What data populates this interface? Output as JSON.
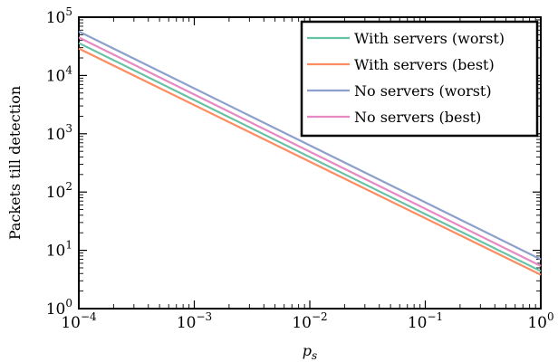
{
  "chart_data": {
    "type": "line",
    "xlabel_base": "p",
    "xlabel_sub": "s",
    "ylabel": "Packets till detection",
    "xscale": "log",
    "yscale": "log",
    "xlim": [
      0.0001,
      1
    ],
    "ylim": [
      1,
      100000
    ],
    "grid": false,
    "legend_position": "top-right",
    "x_ticks": [
      {
        "base": "10",
        "exp": "−4",
        "value": 0.0001
      },
      {
        "base": "10",
        "exp": "−3",
        "value": 0.001
      },
      {
        "base": "10",
        "exp": "−2",
        "value": 0.01
      },
      {
        "base": "10",
        "exp": "−1",
        "value": 0.1
      },
      {
        "base": "10",
        "exp": "0",
        "value": 1
      }
    ],
    "y_ticks": [
      {
        "base": "10",
        "exp": "0",
        "value": 1
      },
      {
        "base": "10",
        "exp": "1",
        "value": 10
      },
      {
        "base": "10",
        "exp": "2",
        "value": 100
      },
      {
        "base": "10",
        "exp": "3",
        "value": 1000
      },
      {
        "base": "10",
        "exp": "4",
        "value": 10000
      },
      {
        "base": "10",
        "exp": "5",
        "value": 100000
      }
    ],
    "series": [
      {
        "name": "With servers (worst)",
        "color": "#66c2a5",
        "x": [
          0.0001,
          1
        ],
        "y": [
          36000,
          4.4
        ]
      },
      {
        "name": "With servers (best)",
        "color": "#fc8d62",
        "x": [
          0.0001,
          1
        ],
        "y": [
          29000,
          3.8
        ]
      },
      {
        "name": "No servers (worst)",
        "color": "#8da0cb",
        "x": [
          0.0001,
          1
        ],
        "y": [
          57000,
          7.0
        ]
      },
      {
        "name": "No servers (best)",
        "color": "#e78ac3",
        "x": [
          0.0001,
          1
        ],
        "y": [
          45000,
          5.4
        ]
      }
    ]
  }
}
